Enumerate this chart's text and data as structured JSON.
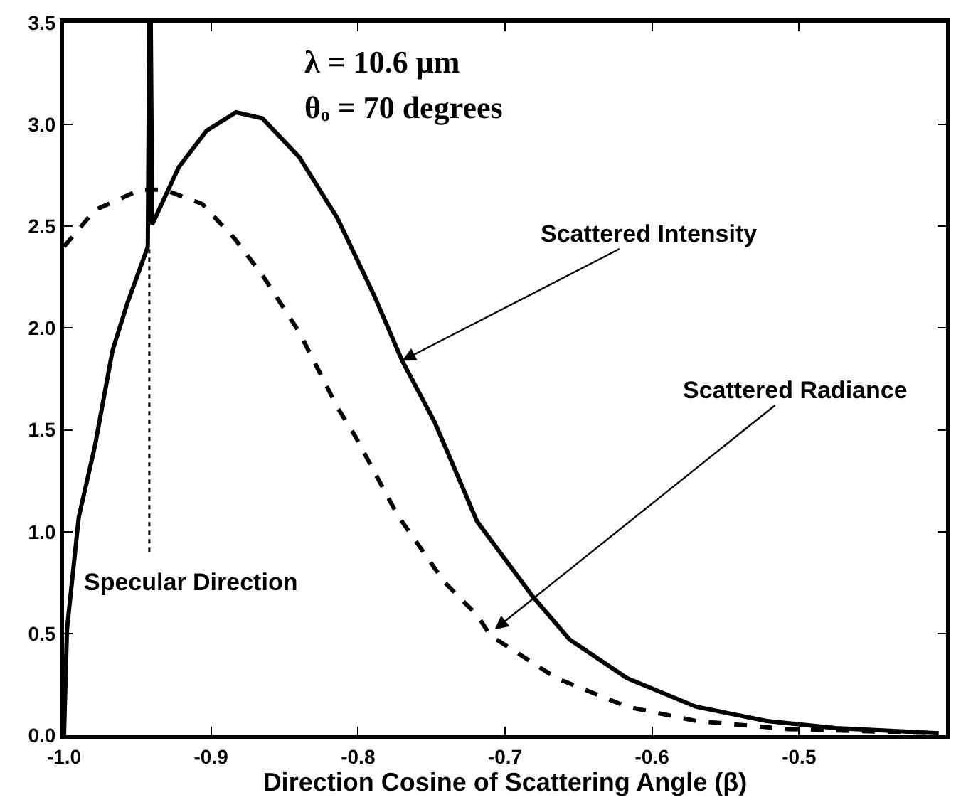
{
  "chart_data": {
    "type": "line",
    "xlabel": "Direction Cosine of Scattering Angle (β)",
    "series": [
      {
        "color": "#000000",
        "line_style": "solid",
        "x": [
          -1.0,
          -0.998,
          -0.99,
          -0.979,
          -0.967,
          -0.957,
          -0.943,
          -0.942,
          -0.941,
          -0.94,
          -0.922,
          -0.903,
          -0.883,
          -0.865,
          -0.84,
          -0.814,
          -0.789,
          -0.77,
          -0.748,
          -0.729,
          -0.719,
          -0.681,
          -0.656,
          -0.617,
          -0.57,
          -0.522,
          -0.475,
          -0.405
        ],
        "values": [
          0,
          0.52,
          1.07,
          1.42,
          1.89,
          2.12,
          2.4,
          3.5,
          3.5,
          2.51,
          2.79,
          2.97,
          3.06,
          3.03,
          2.84,
          2.54,
          2.16,
          1.84,
          1.54,
          1.22,
          1.05,
          0.68,
          0.47,
          0.28,
          0.14,
          0.07,
          0.035,
          0.01
        ]
      },
      {
        "color": "#000000",
        "line_style": "dashed",
        "x": [
          -1.0,
          -0.979,
          -0.948,
          -0.932,
          -0.906,
          -0.884,
          -0.865,
          -0.84,
          -0.814,
          -0.802,
          -0.773,
          -0.741,
          -0.719,
          -0.71,
          -0.665,
          -0.617,
          -0.57,
          -0.507,
          -0.405
        ],
        "values": [
          2.4,
          2.58,
          2.68,
          2.68,
          2.61,
          2.44,
          2.26,
          1.98,
          1.61,
          1.47,
          1.08,
          0.75,
          0.59,
          0.49,
          0.28,
          0.14,
          0.07,
          0.03,
          0.01
        ]
      },
      {
        "color": "#000000",
        "line_style": "dotted",
        "x": [
          -0.942,
          -0.942
        ],
        "values": [
          0.9,
          2.4
        ]
      }
    ],
    "annotations": [
      "λ = 10.6 μm",
      "θₒ = 70 degrees",
      {
        "text": "Scattered Intensity",
        "x": -0.77,
        "y": 1.84
      },
      {
        "text": "Scattered Radiance",
        "x": -0.707,
        "y": 0.52
      },
      {
        "text": "Specular Direction",
        "x": -0.942,
        "y": 0.9
      }
    ],
    "xlim": [
      -1.0,
      -0.4
    ],
    "xticks": [
      {
        "value": -1.0,
        "label": "-1.0"
      },
      -0.9,
      -0.8,
      -0.7,
      -0.6,
      -0.5
    ],
    "ylim": [
      0,
      3.5
    ],
    "yticks": [
      {
        "value": 0,
        "label": "0.0"
      },
      0.5,
      {
        "value": 1,
        "label": "1.0"
      },
      1.5,
      {
        "value": 2,
        "label": "2.0"
      },
      2.5,
      {
        "value": 3,
        "label": "3.0"
      },
      3.5
    ]
  }
}
